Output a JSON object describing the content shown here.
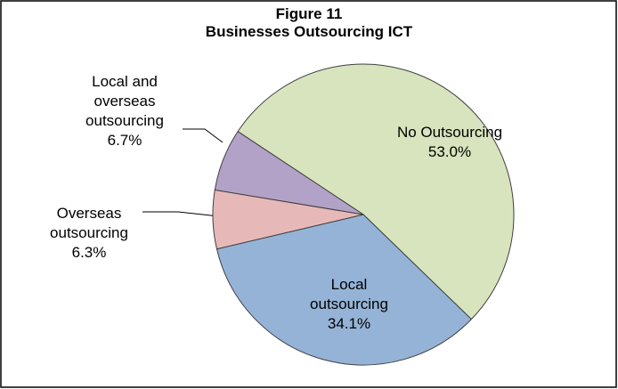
{
  "chart_data": {
    "type": "pie",
    "title": "Figure 11",
    "subtitle": "Businesses Outsourcing ICT",
    "categories": [
      "No Outsourcing",
      "Local outsourcing",
      "Overseas outsourcing",
      "Local and overseas outsourcing"
    ],
    "values": [
      53.0,
      34.1,
      6.3,
      6.7
    ],
    "value_labels": [
      "53.0%",
      "34.1%",
      "6.3%",
      "6.7%"
    ],
    "colors": [
      "#d7e4bd",
      "#95b3d7",
      "#e6b9b8",
      "#b3a2c7"
    ]
  }
}
